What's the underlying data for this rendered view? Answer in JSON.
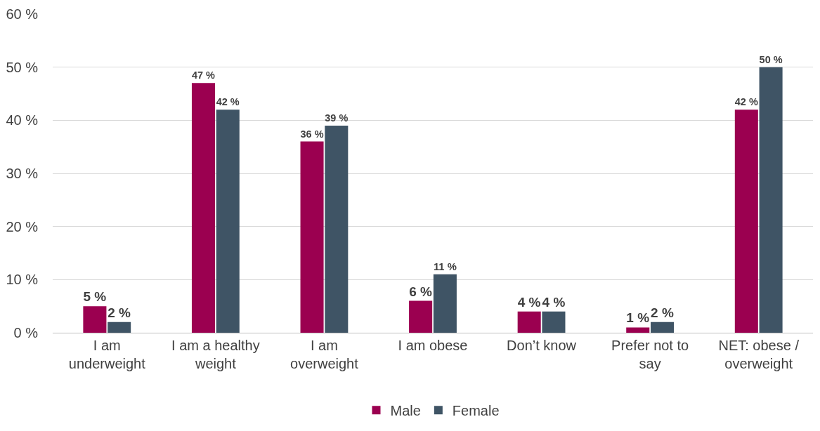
{
  "chart_data": {
    "type": "bar",
    "categories": [
      "I am underweight",
      "I am a healthy weight",
      "I am overweight",
      "I am obese",
      "Don’t know",
      "Prefer not to say",
      "NET: obese / overweight"
    ],
    "series": [
      {
        "name": "Male",
        "color": "#9b0050",
        "values": [
          5,
          47,
          36,
          6,
          4,
          1,
          42
        ],
        "value_labels": [
          "5 %",
          "47 %",
          "36 %",
          "6 %",
          "4 %",
          "1 %",
          "42 %"
        ]
      },
      {
        "name": "Female",
        "color": "#3f5465",
        "values": [
          2,
          42,
          39,
          11,
          4,
          2,
          50
        ],
        "value_labels": [
          "2 %",
          "42 %",
          "39 %",
          "11 %",
          "4 %",
          "2 %",
          "50 %"
        ]
      }
    ],
    "ylim": [
      0,
      60
    ],
    "yticks": [
      {
        "value": 0,
        "label": "0 %"
      },
      {
        "value": 10,
        "label": "10 %"
      },
      {
        "value": 20,
        "label": "20 %"
      },
      {
        "value": 30,
        "label": "30 %"
      },
      {
        "value": 40,
        "label": "40 %"
      },
      {
        "value": 50,
        "label": "50 %"
      },
      {
        "value": 60,
        "label": "60 %"
      }
    ],
    "grid": "y",
    "legend": "bottom"
  }
}
